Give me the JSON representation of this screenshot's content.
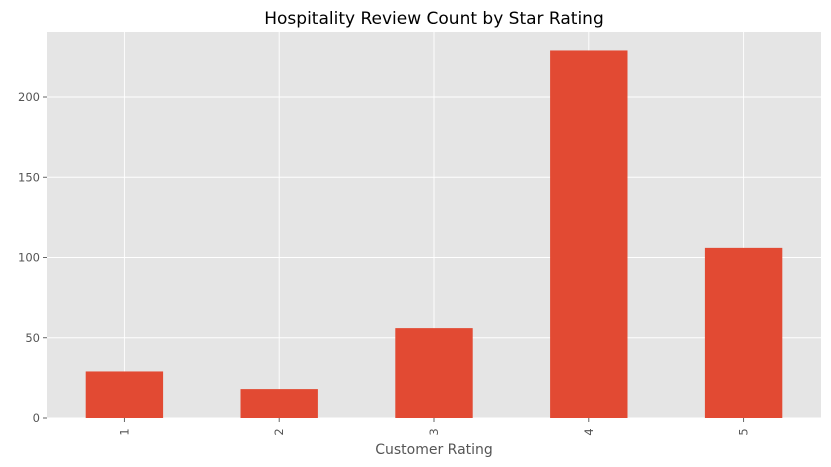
{
  "chart_data": {
    "type": "bar",
    "title": "Hospitality Review Count by Star Rating",
    "xlabel": "Customer Rating",
    "ylabel": "",
    "categories": [
      "1",
      "2",
      "3",
      "4",
      "5"
    ],
    "values": [
      29,
      18,
      56,
      229,
      106
    ],
    "ylim": [
      0,
      240.5
    ],
    "yticks": [
      0,
      50,
      100,
      150,
      200
    ],
    "grid": true,
    "legend": "none",
    "colors": {
      "bar": "#E24A33",
      "background": "#E5E5E5",
      "grid": "#FFFFFF"
    }
  }
}
